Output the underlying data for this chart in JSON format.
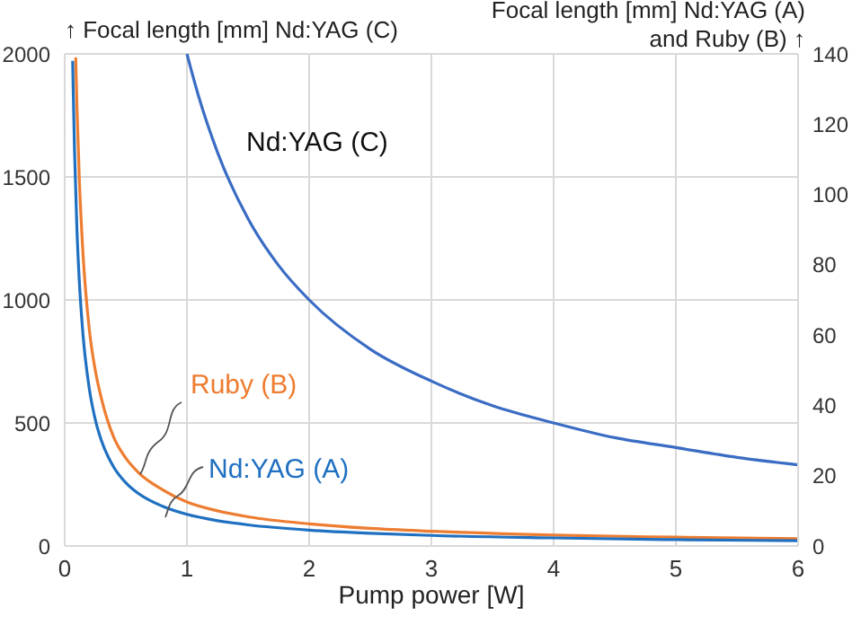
{
  "chart_data": {
    "type": "line",
    "xlabel": "Pump power [W]",
    "ylabel": "↑ Focal length [mm] Nd:YAG (C)",
    "y2label": "Focal length [mm] Nd:YAG (A)\nand Ruby (B) ↑",
    "xlim": [
      0,
      6
    ],
    "xticks": [
      0,
      1,
      2,
      3,
      4,
      5,
      6
    ],
    "ylim": [
      0,
      2000
    ],
    "yticks": [
      0,
      500,
      1000,
      1500,
      2000
    ],
    "y2lim": [
      0,
      140
    ],
    "y2ticks": [
      0,
      20,
      40,
      60,
      80,
      100,
      120,
      140
    ],
    "grid": true,
    "marker": "none",
    "line_style": "solid",
    "series": [
      {
        "name": "Nd:YAG (C)",
        "color": "#3a6cc4",
        "x": [
          1,
          1.1,
          1.25,
          1.5,
          1.75,
          2,
          2.5,
          3,
          3.5,
          4,
          4.5,
          5,
          5.5,
          6
        ],
        "values": [
          2000,
          1820,
          1600,
          1330,
          1140,
          1000,
          800,
          670,
          570,
          500,
          440,
          400,
          360,
          330
        ]
      },
      {
        "name": "Ruby (B)",
        "color": "#ed7d31",
        "axis": "y2",
        "x": [
          0.09,
          0.1,
          0.12,
          0.15,
          0.2,
          0.25,
          0.3,
          0.4,
          0.5,
          0.6,
          0.8,
          1,
          1.25,
          1.5,
          2,
          2.5,
          3,
          4,
          5,
          6
        ],
        "values": [
          139,
          125,
          104,
          83,
          62,
          50,
          42,
          31,
          25,
          21,
          16,
          12.5,
          10,
          8.3,
          6.3,
          5,
          4.2,
          3.1,
          2.5,
          2.1
        ]
      },
      {
        "name": "Nd:YAG (A)",
        "color": "#1f70c1",
        "axis": "y2",
        "x": [
          0.065,
          0.07,
          0.08,
          0.1,
          0.12,
          0.15,
          0.2,
          0.25,
          0.3,
          0.4,
          0.5,
          0.6,
          0.8,
          1,
          1.25,
          1.5,
          2,
          2.5,
          3,
          4,
          5,
          6
        ],
        "values": [
          138,
          129,
          113,
          90,
          75,
          60,
          45,
          36,
          30,
          22.5,
          18,
          15,
          11.3,
          9,
          7.2,
          6,
          4.5,
          3.6,
          3,
          2.3,
          1.8,
          1.5
        ]
      }
    ]
  }
}
